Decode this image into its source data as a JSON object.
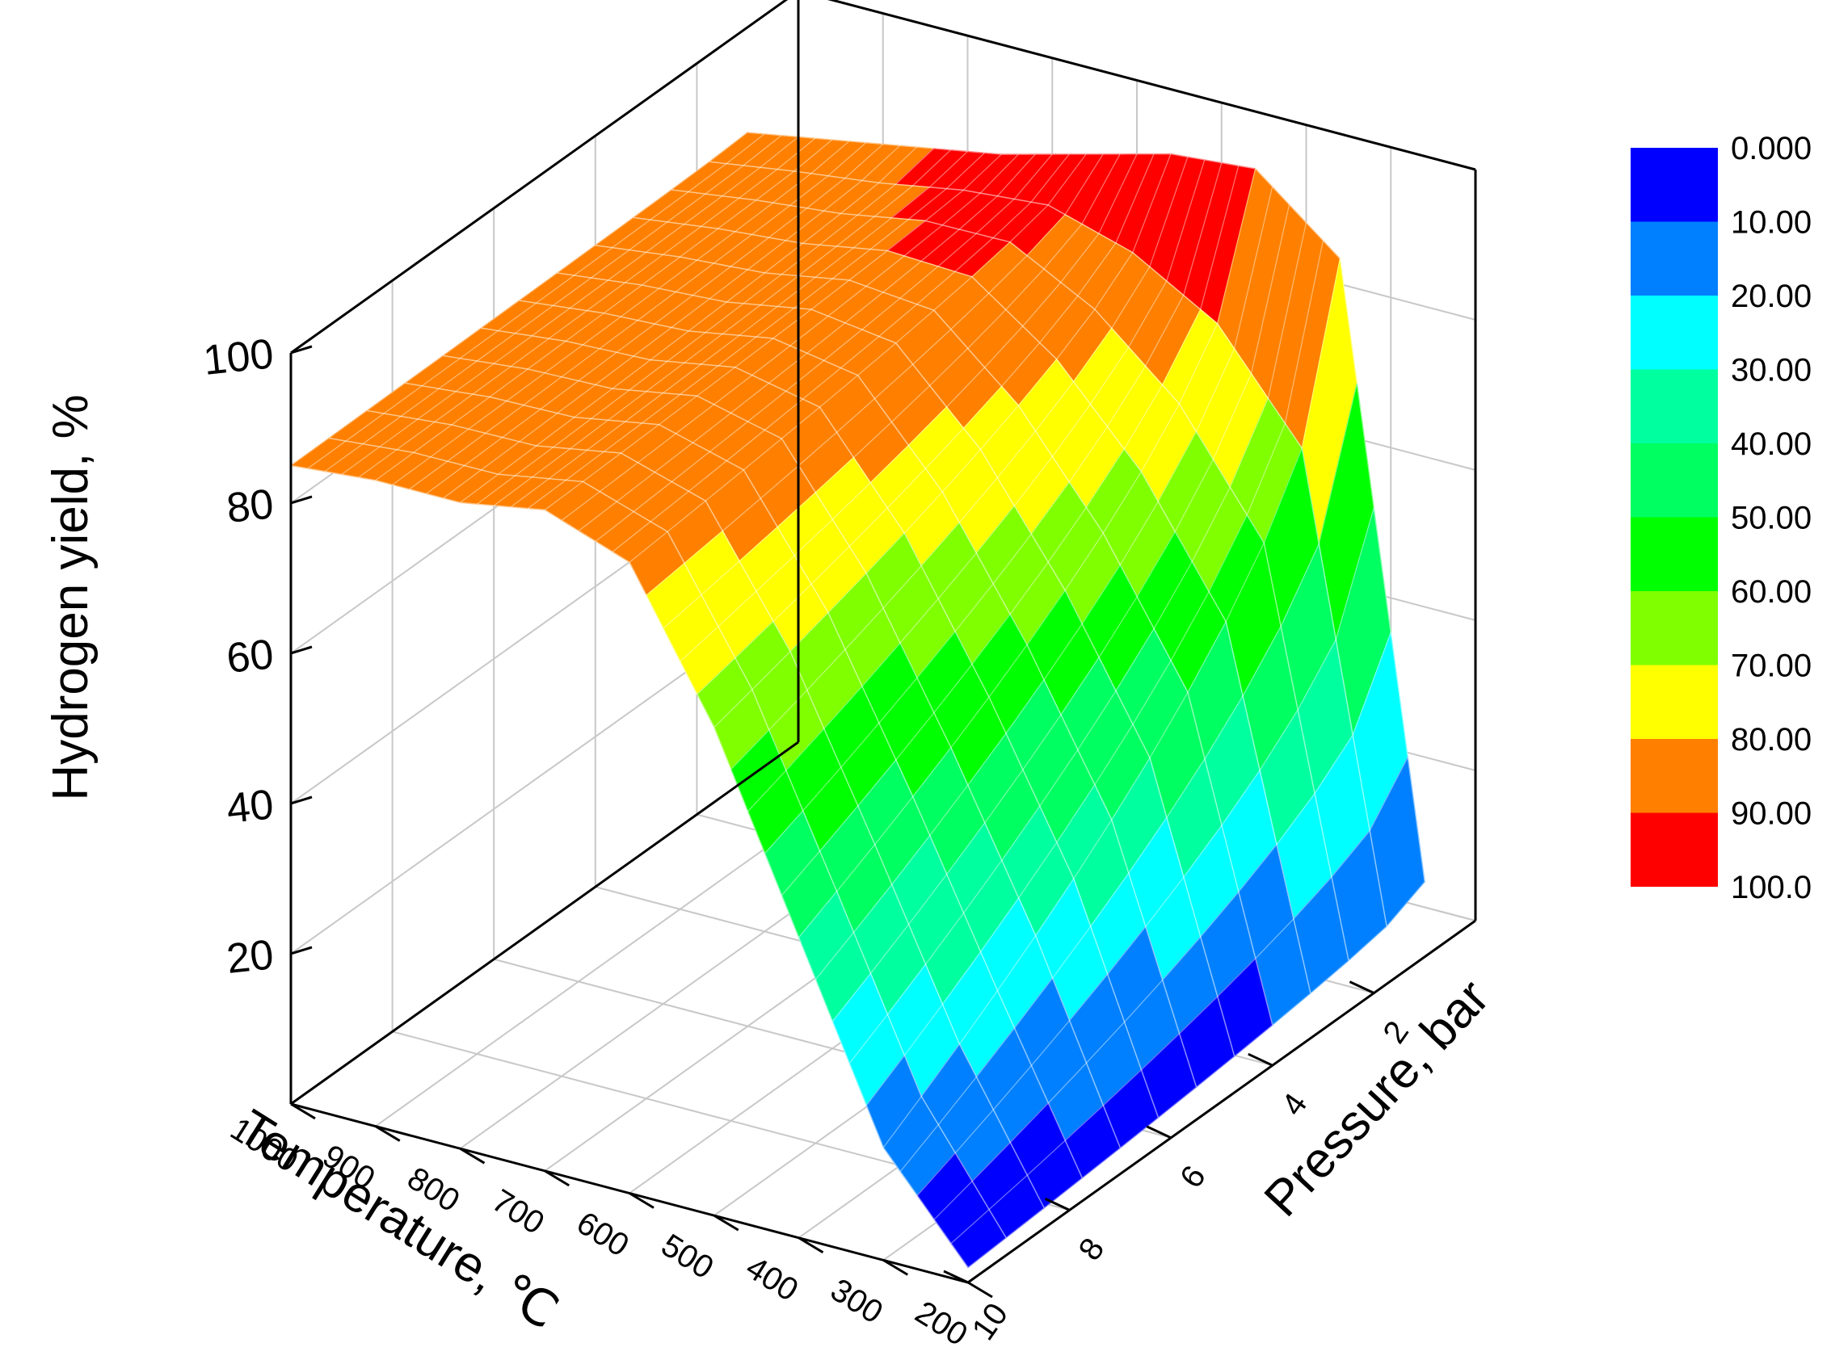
{
  "chart_data": {
    "type": "surface",
    "title": "",
    "zlabel": "Hydrogen yield, %",
    "xlabel": "Temperature, ℃",
    "ylabel": "Pressure, bar",
    "z_ticks": [
      "20",
      "40",
      "60",
      "80",
      "100"
    ],
    "x_ticks": [
      "1000",
      "900",
      "800",
      "700",
      "600",
      "500",
      "400",
      "300",
      "200"
    ],
    "y_ticks": [
      "2",
      "4",
      "6",
      "8",
      "10"
    ],
    "zlim": [
      0,
      100
    ],
    "xlim": [
      1000,
      200
    ],
    "ylim": [
      0,
      10
    ],
    "temperature": [
      1000,
      900,
      800,
      700,
      600,
      500,
      400,
      300,
      200
    ],
    "pressure": [
      1,
      10
    ],
    "yield_at_1bar": [
      86,
      88,
      90,
      92,
      95,
      98,
      99,
      90,
      10
    ],
    "yield_at_10bar": [
      85,
      86,
      86,
      88,
      84,
      65,
      40,
      15,
      2
    ],
    "legend": {
      "levels": [
        "0.000",
        "10.00",
        "20.00",
        "30.00",
        "40.00",
        "50.00",
        "60.00",
        "70.00",
        "80.00",
        "90.00",
        "100.0"
      ],
      "colors": [
        "#0000ff",
        "#0080ff",
        "#00ffff",
        "#00ff9f",
        "#00ff60",
        "#00ff00",
        "#80ff00",
        "#ffff00",
        "#ff8000",
        "#ff0000"
      ]
    },
    "grid": true,
    "legend_position": "right"
  }
}
